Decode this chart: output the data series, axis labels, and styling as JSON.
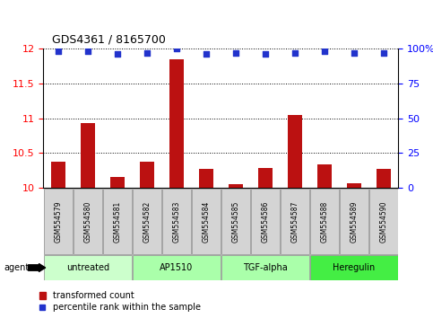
{
  "title": "GDS4361 / 8165700",
  "samples": [
    "GSM554579",
    "GSM554580",
    "GSM554581",
    "GSM554582",
    "GSM554583",
    "GSM554584",
    "GSM554585",
    "GSM554586",
    "GSM554587",
    "GSM554588",
    "GSM554589",
    "GSM554590"
  ],
  "bar_values": [
    10.38,
    10.93,
    10.15,
    10.38,
    11.85,
    10.27,
    10.05,
    10.28,
    11.05,
    10.34,
    10.06,
    10.27
  ],
  "percentile_values": [
    98,
    98,
    96,
    97,
    100,
    96,
    97,
    96,
    97,
    98,
    97,
    97
  ],
  "ylim_left": [
    10.0,
    12.0
  ],
  "ylim_right": [
    0,
    100
  ],
  "yticks_left": [
    10.0,
    10.5,
    11.0,
    11.5,
    12.0
  ],
  "yticks_right": [
    0,
    25,
    50,
    75,
    100
  ],
  "ytick_labels_right": [
    "0",
    "25",
    "50",
    "75",
    "100%"
  ],
  "bar_color": "#bb1111",
  "dot_color": "#2233cc",
  "agent_groups": [
    {
      "label": "untreated",
      "start": 0,
      "end": 2,
      "color": "#ccffcc"
    },
    {
      "label": "AP1510",
      "start": 3,
      "end": 5,
      "color": "#aaffaa"
    },
    {
      "label": "TGF-alpha",
      "start": 6,
      "end": 8,
      "color": "#aaffaa"
    },
    {
      "label": "Heregulin",
      "start": 9,
      "end": 11,
      "color": "#44ee44"
    }
  ],
  "legend_bar_label": "transformed count",
  "legend_dot_label": "percentile rank within the sample",
  "agent_label": "agent"
}
